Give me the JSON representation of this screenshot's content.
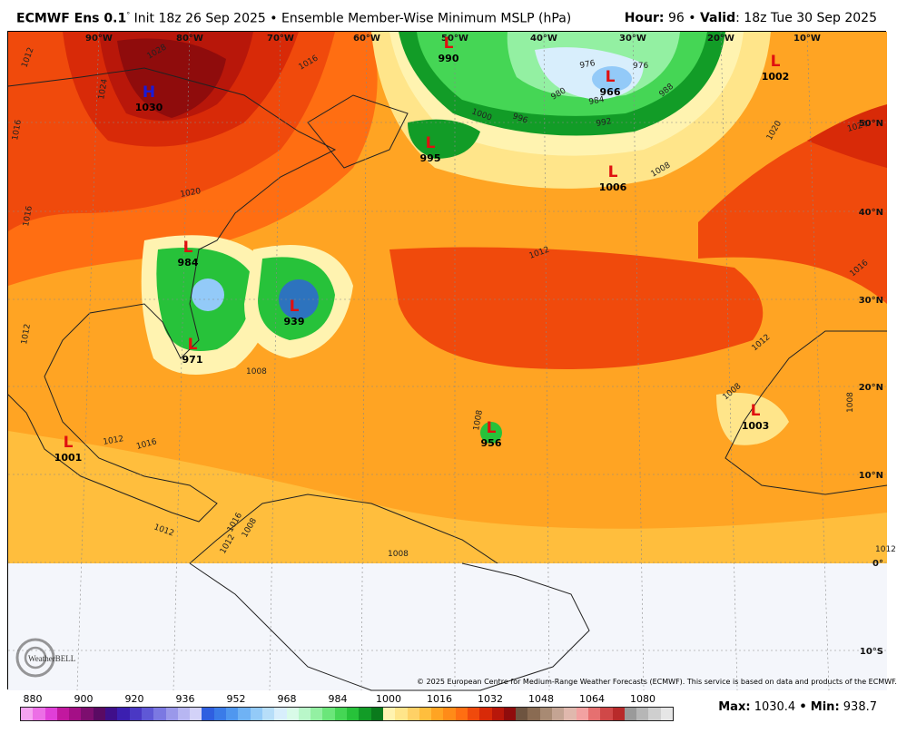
{
  "header": {
    "model": "ECMWF Ens 0.1",
    "init": "Init 18z 26 Sep 2025",
    "product": "Ensemble Member-Wise Minimum MSLP (hPa)",
    "hour_label": "Hour",
    "hour_value": "96",
    "valid_label": "Valid",
    "valid_value": "18z Tue 30 Sep 2025"
  },
  "map": {
    "lon_labels": [
      "90°W",
      "80°W",
      "70°W",
      "60°W",
      "50°W",
      "40°W",
      "30°W",
      "20°W",
      "10°W"
    ],
    "lat_labels": [
      "50°N",
      "40°N",
      "30°N",
      "20°N",
      "10°N",
      "0°",
      "10°S"
    ],
    "pressure_systems": [
      {
        "type": "H",
        "value": "1030"
      },
      {
        "type": "L",
        "value": "990"
      },
      {
        "type": "L",
        "value": "966"
      },
      {
        "type": "L",
        "value": "1002"
      },
      {
        "type": "L",
        "value": "995"
      },
      {
        "type": "L",
        "value": "1006"
      },
      {
        "type": "L",
        "value": "984"
      },
      {
        "type": "L",
        "value": "939"
      },
      {
        "type": "L",
        "value": "971"
      },
      {
        "type": "L",
        "value": "956"
      },
      {
        "type": "L",
        "value": "1003"
      },
      {
        "type": "L",
        "value": "1001"
      }
    ],
    "isobar_labels": [
      "1012",
      "1028",
      "1024",
      "1016",
      "1020",
      "1016",
      "1012",
      "1008",
      "980",
      "976",
      "976",
      "984",
      "988",
      "992",
      "996",
      "1000",
      "1024",
      "1020",
      "1016",
      "1012",
      "1012",
      "1008",
      "1008",
      "1016",
      "1012",
      "1008",
      "1012",
      "1016",
      "1012",
      "1008",
      "1008",
      "1008",
      "1012",
      "1016"
    ],
    "copyright": "© 2025 European Centre for Medium-Range Weather Forecasts (ECMWF). This service is based on data and products of the ECMWF.",
    "logo_text": "WeatherBELL"
  },
  "colorbar": {
    "ticks": [
      "880",
      "900",
      "920",
      "936",
      "952",
      "968",
      "984",
      "1000",
      "1016",
      "1032",
      "1048",
      "1064",
      "1080"
    ],
    "colors": [
      "#f5a3f0",
      "#ec6fe6",
      "#e03fd8",
      "#c2189f",
      "#a40f86",
      "#7d0e6f",
      "#5a0a63",
      "#3f0f8a",
      "#3b1fb0",
      "#4a38c4",
      "#5f58d6",
      "#7b78e2",
      "#9a98ea",
      "#b7b6f2",
      "#d3d2f8",
      "#2f5fe0",
      "#3a7be8",
      "#4f97ef",
      "#6fb2f4",
      "#93caf8",
      "#b7def9",
      "#d8eefc",
      "#d9fbe8",
      "#b9f7c9",
      "#93f0a2",
      "#6be67a",
      "#45d655",
      "#27c23a",
      "#129c27",
      "#0a7a1c",
      "#fff3b0",
      "#ffe58a",
      "#ffd166",
      "#ffbe3d",
      "#ffa423",
      "#ff8b18",
      "#ff6e12",
      "#f04a0c",
      "#d82a08",
      "#b8170a",
      "#8f0c0c",
      "#6e5440",
      "#8a6b52",
      "#a88a73",
      "#c4a493",
      "#e0b8ad",
      "#f2a1a1",
      "#e67070",
      "#d04848",
      "#b82a2a",
      "#9a9a9a",
      "#b6b6b6",
      "#cfcfcf",
      "#e6e6e6"
    ],
    "max_label": "Max",
    "max_value": "1030.4",
    "min_label": "Min",
    "min_value": "938.7"
  }
}
